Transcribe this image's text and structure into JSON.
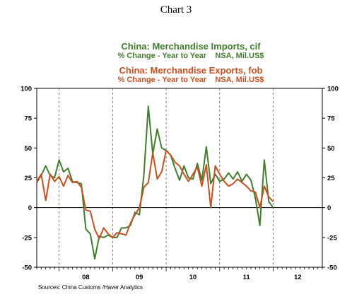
{
  "title": "Chart 3",
  "legend": [
    {
      "name": "China: Merchandise Imports, cif",
      "desc": "% Change - Year to Year    NSA, Mil.US$",
      "color": "#3f7f2b"
    },
    {
      "name": "China: Merchandise Exports, fob",
      "desc": "% Change - Year to Year    NSA, Mil.US$",
      "color": "#c8501e"
    }
  ],
  "source": "Sources:  China Customs /Haver Analytics",
  "chart_data": {
    "type": "line",
    "xlim": [
      "2007-08",
      "2012-12"
    ],
    "ylim": [
      -50,
      100
    ],
    "yticks": [
      -50,
      -25,
      0,
      25,
      50,
      75,
      100
    ],
    "xtick_labels": [
      "08",
      "09",
      "10",
      "11",
      "12"
    ],
    "grid": "vertical dashed at year boundaries",
    "x_start": "2007-08",
    "series": [
      {
        "name": "China: Merchandise Imports, cif",
        "color": "#3f7f2b",
        "values": [
          21,
          27,
          35,
          27,
          25,
          40,
          30,
          33,
          22,
          21,
          20,
          -18,
          -22,
          -43,
          -24,
          -25,
          -23,
          -25,
          -25,
          -17,
          -17,
          -15,
          -4,
          -6,
          27,
          85,
          45,
          66,
          50,
          48,
          44,
          33,
          23,
          35,
          25,
          24,
          37,
          23,
          51,
          20,
          28,
          22,
          24,
          29,
          24,
          30,
          22,
          28,
          23,
          8,
          -15,
          40,
          5,
          0
        ]
      },
      {
        "name": "China: Merchandise Exports, fob",
        "color": "#c8501e",
        "values": [
          22,
          28,
          6,
          28,
          22,
          26,
          18,
          27,
          21,
          22,
          17,
          -2,
          -3,
          -18,
          -26,
          -17,
          -22,
          -25,
          -21,
          -22,
          -23,
          -13,
          -6,
          0,
          17,
          21,
          46,
          24,
          30,
          48,
          44,
          38,
          35,
          28,
          22,
          28,
          34,
          18,
          36,
          0,
          35,
          28,
          22,
          18,
          20,
          24,
          21,
          18,
          14,
          13,
          0,
          18,
          9,
          5
        ]
      }
    ]
  }
}
